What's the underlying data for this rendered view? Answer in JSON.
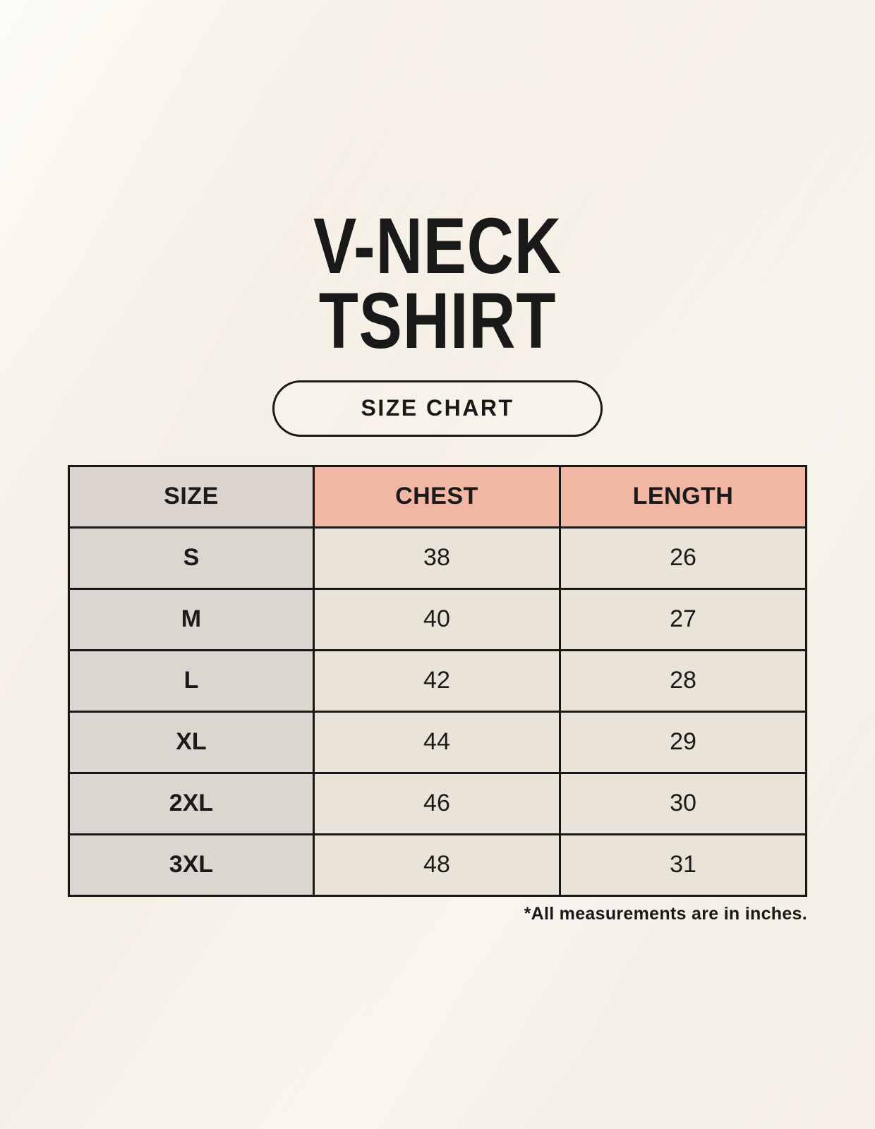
{
  "page": {
    "background_color": "#F8F3EA",
    "ink_color": "#1A1A1A",
    "title_line1": "V-NECK",
    "title_line2": "TSHIRT",
    "size_chart_button_label": "SIZE CHART",
    "footnote": "*All measurements are in inches."
  },
  "table_colors": {
    "header_label_gray": "#DBD4CE",
    "header_accent_pink": "#F2B6A4",
    "row_label_gray": "#DCD6D0",
    "value_cell_cream": "#EAE4D8",
    "border": "#181818"
  },
  "chart_data": {
    "type": "table",
    "title": "V-NECK TSHIRT",
    "subtitle": "SIZE CHART",
    "columns": [
      "SIZE",
      "CHEST",
      "LENGTH"
    ],
    "rows": [
      {
        "size": "S",
        "chest": 38,
        "length": 26
      },
      {
        "size": "M",
        "chest": 40,
        "length": 27
      },
      {
        "size": "L",
        "chest": 42,
        "length": 28
      },
      {
        "size": "XL",
        "chest": 44,
        "length": 29
      },
      {
        "size": "2XL",
        "chest": 46,
        "length": 30
      },
      {
        "size": "3XL",
        "chest": 48,
        "length": 31
      }
    ],
    "footnote": "*All measurements are in inches.",
    "layout": {
      "grid": "on",
      "header_row": true,
      "label_column": true
    }
  }
}
